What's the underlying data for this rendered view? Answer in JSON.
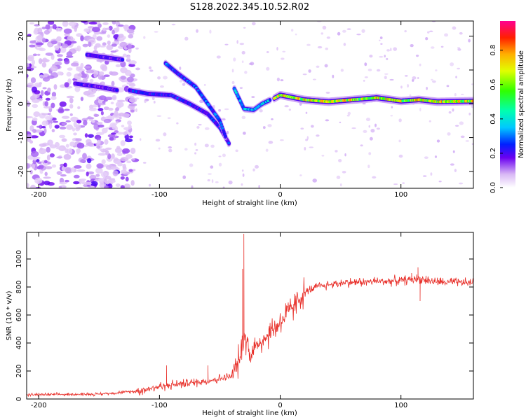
{
  "title": "S128.2022.345.10.52.R02",
  "chart_data": [
    {
      "type": "heatmap",
      "xlabel": "Height of straight line (km)",
      "ylabel": "Frequency (Hz)",
      "xlim": [
        -210,
        160
      ],
      "ylim": [
        -25,
        24.5
      ],
      "xticks": [
        -200,
        -100,
        0,
        100
      ],
      "yticks": [
        -20,
        -10,
        0,
        10,
        20
      ],
      "colorbar": {
        "label": "Normalized spectral amplitude",
        "range": [
          0,
          0.97
        ],
        "ticks": [
          0.0,
          0.2,
          0.4,
          0.6,
          0.8
        ]
      },
      "tracks": [
        {
          "points": [
            [
              -5,
              1.6
            ],
            [
              0,
              2.6
            ],
            [
              20,
              1.2
            ],
            [
              40,
              0.6
            ],
            [
              60,
              1.2
            ],
            [
              80,
              1.8
            ],
            [
              100,
              0.8
            ],
            [
              115,
              1.2
            ],
            [
              130,
              0.6
            ],
            [
              160,
              0.8
            ]
          ],
          "amplitude": 0.85
        },
        {
          "points": [
            [
              -38,
              4.5
            ],
            [
              -30,
              -1.5
            ],
            [
              -22,
              -1.8
            ],
            [
              -15,
              0
            ],
            [
              -8,
              1.2
            ]
          ],
          "amplitude": 0.45
        },
        {
          "points": [
            [
              -125,
              4
            ],
            [
              -110,
              3
            ],
            [
              -90,
              2.5
            ],
            [
              -75,
              0
            ],
            [
              -60,
              -3
            ],
            [
              -50,
              -7
            ],
            [
              -42,
              -12
            ]
          ],
          "amplitude": 0.3
        },
        {
          "points": [
            [
              -95,
              12
            ],
            [
              -85,
              9
            ],
            [
              -70,
              5
            ],
            [
              -60,
              0
            ],
            [
              -50,
              -5
            ],
            [
              -45,
              -10
            ]
          ],
          "amplitude": 0.35
        },
        {
          "points": [
            [
              -160,
              14.5
            ],
            [
              -150,
              14
            ],
            [
              -140,
              13.5
            ],
            [
              -130,
              13
            ]
          ],
          "amplitude": 0.25
        },
        {
          "points": [
            [
              -170,
              6
            ],
            [
              -150,
              5
            ],
            [
              -135,
              4
            ]
          ],
          "amplitude": 0.25
        }
      ]
    },
    {
      "type": "line",
      "xlabel": "Height of straight line (km)",
      "ylabel": "SNR (10 * v/v)",
      "xlim": [
        -210,
        160
      ],
      "ylim": [
        0,
        1190
      ],
      "xticks": [
        -200,
        -100,
        0,
        100
      ],
      "yticks": [
        0,
        200,
        400,
        600,
        800,
        1000
      ],
      "color": "#e8302a",
      "trend": {
        "x": [
          -210,
          -150,
          -120,
          -100,
          -80,
          -60,
          -40,
          -33,
          -30,
          -25,
          -20,
          -10,
          0,
          10,
          20,
          30,
          50,
          80,
          100,
          115,
          130,
          160
        ],
        "y": [
          30,
          35,
          55,
          90,
          110,
          130,
          160,
          300,
          480,
          320,
          380,
          460,
          550,
          650,
          760,
          800,
          830,
          840,
          845,
          860,
          835,
          830
        ]
      },
      "peaks": [
        {
          "x": -30,
          "y": 1180
        },
        {
          "x": -31,
          "y": 930
        },
        {
          "x": 114,
          "y": 940
        },
        {
          "x": 109,
          "y": 900
        },
        {
          "x": 116,
          "y": 700
        },
        {
          "x": -94,
          "y": 240
        },
        {
          "x": -60,
          "y": 240
        }
      ]
    }
  ]
}
